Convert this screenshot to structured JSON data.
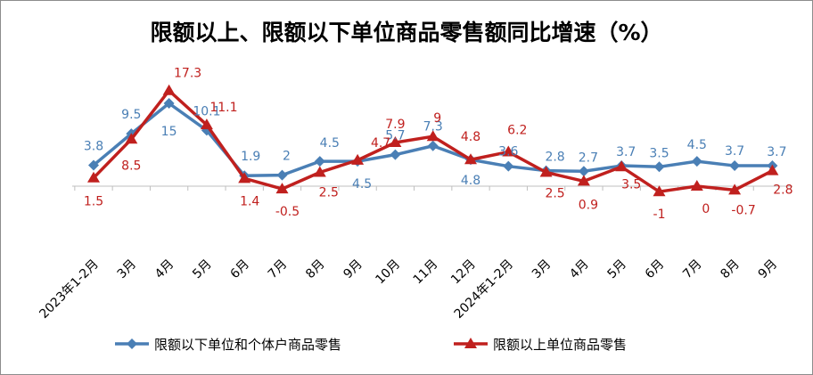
{
  "chart_data": {
    "type": "line",
    "title": "限额以上、限额以下单位商品零售额同比增速（%）",
    "categories": [
      "2023年1-2月",
      "3月",
      "4月",
      "5月",
      "6月",
      "7月",
      "8月",
      "9月",
      "10月",
      "11月",
      "12月",
      "2024年1-2月",
      "3月",
      "4月",
      "5月",
      "6月",
      "7月",
      "8月",
      "9月"
    ],
    "series": [
      {
        "name": "限额以下单位和个体户商品零售",
        "color": "#4a7fb5",
        "marker": "diamond",
        "values": [
          3.8,
          9.5,
          15,
          10.1,
          1.9,
          2,
          4.5,
          4.5,
          5.7,
          7.3,
          4.8,
          3.6,
          2.8,
          2.7,
          3.7,
          3.5,
          4.5,
          3.7,
          3.7
        ]
      },
      {
        "name": "限额以上单位商品零售",
        "color": "#c0201e",
        "marker": "triangle",
        "values": [
          1.5,
          8.5,
          17.3,
          11.1,
          1.4,
          -0.5,
          2.5,
          4.7,
          7.9,
          9,
          4.8,
          6.2,
          2.5,
          0.9,
          3.5,
          -1,
          0,
          -0.7,
          2.8
        ]
      }
    ],
    "ylim": [
      -1.5,
      19
    ],
    "grid": false,
    "legend": "bottom"
  }
}
